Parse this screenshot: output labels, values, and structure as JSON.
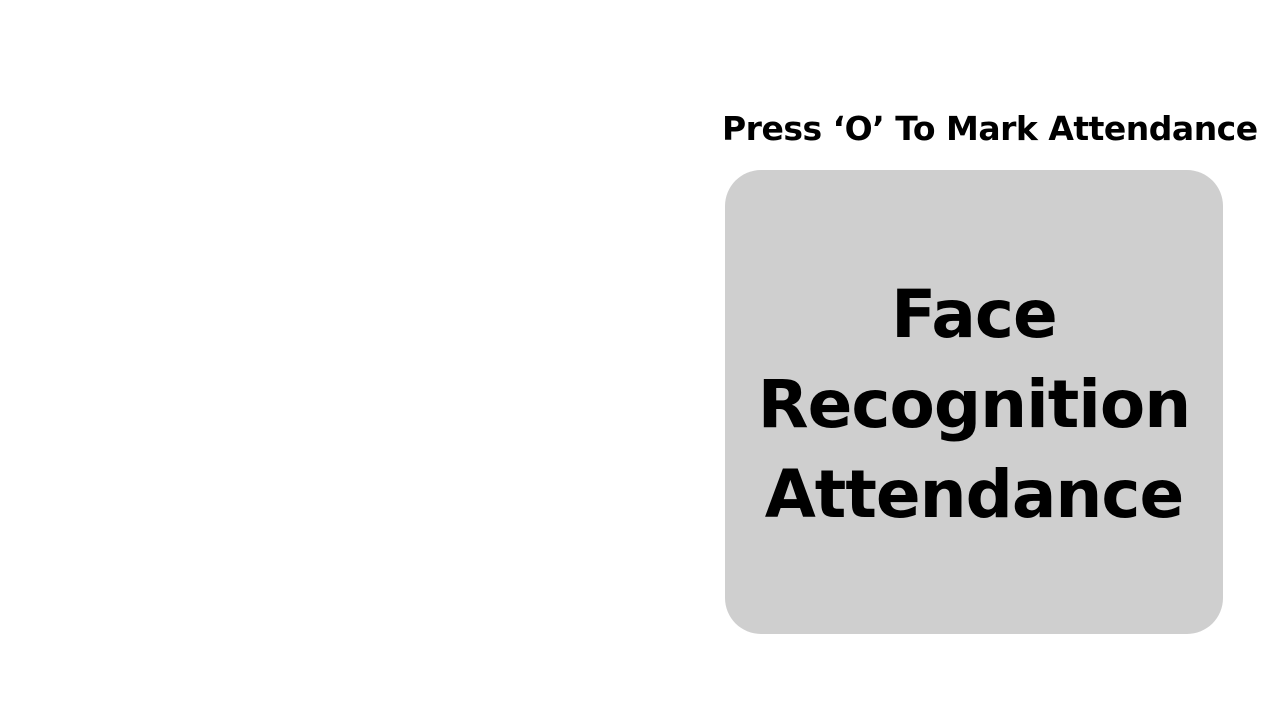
{
  "instruction": {
    "text": "Press ‘O’ To Mark Attendance"
  },
  "panel": {
    "title_lines": [
      "Face",
      "Recognition",
      "Attendance"
    ],
    "background": "#cfcfcf"
  },
  "colors": {
    "page_background": "#ffffff",
    "text": "#000000"
  }
}
